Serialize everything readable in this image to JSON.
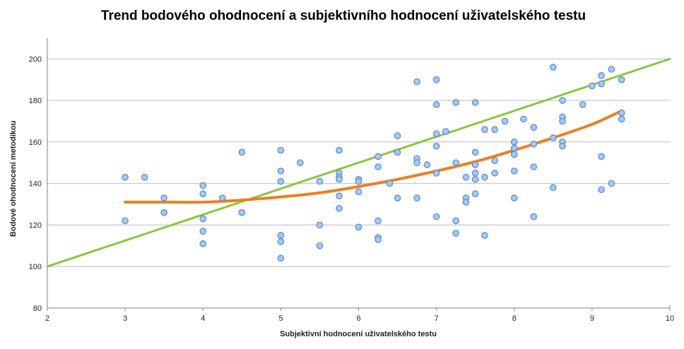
{
  "chart_data": {
    "type": "scatter",
    "title": "Trend bodového ohodnocení a subjektivního hodnocení uživatelského testu",
    "xlabel": "Subjektivní hodnocení uživatelského testu",
    "ylabel": "Bodové ohodnocení metodikou",
    "xlim": [
      2,
      10
    ],
    "ylim": [
      80,
      210
    ],
    "xticks": [
      2,
      3,
      4,
      5,
      6,
      7,
      8,
      9,
      10
    ],
    "yticks": [
      80,
      100,
      120,
      140,
      160,
      180,
      200
    ],
    "grid": "horizontal",
    "legend": "none",
    "series": [
      {
        "kind": "points",
        "color": "#a9c8ee",
        "edge_color": "#5b8fd6",
        "points": [
          [
            3.0,
            143
          ],
          [
            3.0,
            122
          ],
          [
            3.25,
            143
          ],
          [
            3.5,
            133
          ],
          [
            3.5,
            126
          ],
          [
            4.0,
            139
          ],
          [
            4.0,
            135
          ],
          [
            4.0,
            123
          ],
          [
            4.0,
            117
          ],
          [
            4.0,
            111
          ],
          [
            4.25,
            133
          ],
          [
            4.5,
            155
          ],
          [
            4.5,
            126
          ],
          [
            5.0,
            156
          ],
          [
            5.0,
            146
          ],
          [
            5.0,
            141
          ],
          [
            5.0,
            115
          ],
          [
            5.0,
            112
          ],
          [
            5.0,
            104
          ],
          [
            5.25,
            150
          ],
          [
            5.5,
            141
          ],
          [
            5.5,
            120
          ],
          [
            5.5,
            110
          ],
          [
            5.75,
            156
          ],
          [
            5.75,
            145
          ],
          [
            5.75,
            143
          ],
          [
            5.75,
            142
          ],
          [
            5.75,
            134
          ],
          [
            5.75,
            128
          ],
          [
            6.0,
            142
          ],
          [
            6.0,
            141
          ],
          [
            6.0,
            136
          ],
          [
            6.0,
            119
          ],
          [
            6.25,
            153
          ],
          [
            6.25,
            148
          ],
          [
            6.25,
            122
          ],
          [
            6.25,
            114
          ],
          [
            6.25,
            113
          ],
          [
            6.4,
            140
          ],
          [
            6.5,
            163
          ],
          [
            6.5,
            155
          ],
          [
            6.5,
            133
          ],
          [
            6.75,
            189
          ],
          [
            6.75,
            152
          ],
          [
            6.75,
            150
          ],
          [
            6.75,
            133
          ],
          [
            6.88,
            149
          ],
          [
            7.0,
            190
          ],
          [
            7.0,
            178
          ],
          [
            7.0,
            164
          ],
          [
            7.0,
            158
          ],
          [
            7.0,
            145
          ],
          [
            7.0,
            124
          ],
          [
            7.12,
            165
          ],
          [
            7.25,
            179
          ],
          [
            7.25,
            150
          ],
          [
            7.25,
            122
          ],
          [
            7.25,
            116
          ],
          [
            7.38,
            143
          ],
          [
            7.38,
            133
          ],
          [
            7.38,
            131
          ],
          [
            7.5,
            179
          ],
          [
            7.5,
            155
          ],
          [
            7.5,
            149
          ],
          [
            7.5,
            145
          ],
          [
            7.5,
            142
          ],
          [
            7.5,
            135
          ],
          [
            7.62,
            166
          ],
          [
            7.62,
            143
          ],
          [
            7.62,
            115
          ],
          [
            7.75,
            166
          ],
          [
            7.75,
            151
          ],
          [
            7.75,
            145
          ],
          [
            7.88,
            170
          ],
          [
            8.0,
            160
          ],
          [
            8.0,
            157
          ],
          [
            8.0,
            154
          ],
          [
            8.0,
            146
          ],
          [
            8.0,
            133
          ],
          [
            8.12,
            171
          ],
          [
            8.25,
            167
          ],
          [
            8.25,
            159
          ],
          [
            8.25,
            148
          ],
          [
            8.25,
            124
          ],
          [
            8.5,
            196
          ],
          [
            8.5,
            162
          ],
          [
            8.5,
            138
          ],
          [
            8.62,
            180
          ],
          [
            8.62,
            172
          ],
          [
            8.62,
            170
          ],
          [
            8.62,
            160
          ],
          [
            8.62,
            158
          ],
          [
            8.88,
            178
          ],
          [
            9.0,
            187
          ],
          [
            9.12,
            192
          ],
          [
            9.12,
            188
          ],
          [
            9.12,
            153
          ],
          [
            9.12,
            137
          ],
          [
            9.25,
            195
          ],
          [
            9.25,
            140
          ],
          [
            9.38,
            190
          ],
          [
            9.38,
            174
          ],
          [
            9.38,
            171
          ]
        ]
      },
      {
        "kind": "line",
        "color": "#8cc63e",
        "points": [
          [
            2,
            100
          ],
          [
            10,
            200
          ]
        ]
      },
      {
        "kind": "curve",
        "color": "#ee7e1f",
        "points": [
          [
            3.0,
            131
          ],
          [
            3.5,
            131
          ],
          [
            4.0,
            131
          ],
          [
            4.5,
            132
          ],
          [
            5.0,
            133.5
          ],
          [
            5.5,
            135.5
          ],
          [
            6.0,
            138.5
          ],
          [
            6.5,
            142
          ],
          [
            7.0,
            146
          ],
          [
            7.5,
            150.5
          ],
          [
            8.0,
            156
          ],
          [
            8.5,
            162
          ],
          [
            9.0,
            168.5
          ],
          [
            9.38,
            175
          ]
        ]
      }
    ]
  }
}
